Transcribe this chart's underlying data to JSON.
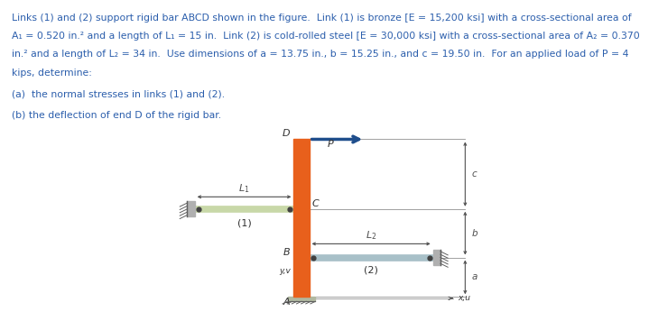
{
  "text_color": "#2B5EAC",
  "title_lines": [
    "Links (1) and (2) support rigid bar ABCD shown in the figure.  Link (1) is bronze [E = 15,200 ksi] with a cross-sectional area of",
    "A₁ = 0.520 in.² and a length of L₁ = 15 in.  Link (2) is cold-rolled steel [E = 30,000 ksi] with a cross-sectional area of A₂ = 0.370",
    "in.² and a length of L₂ = 34 in.  Use dimensions of a = 13.75 in., b = 15.25 in., and c = 19.50 in.  For an applied load of P = 4",
    "kips, determine:"
  ],
  "part_a": "(a)  the normal stresses in links (1) and (2).",
  "part_b": "(b) the deflection of end D of the rigid bar.",
  "bar_color": "#E8601C",
  "link1_color": "#C8D8A8",
  "link2_color": "#A8C0C8",
  "wall_color": "#B0B0B0",
  "ground_color": "#B0B8A0",
  "dim_line_color": "#505050",
  "ref_line_color": "#909090",
  "arrow_color": "#1F4E8C",
  "label_color": "#303030",
  "fig_bg": "#FFFFFF",
  "text_fontsize": 7.8,
  "label_fontsize": 8.0,
  "dim_fontsize": 7.5
}
